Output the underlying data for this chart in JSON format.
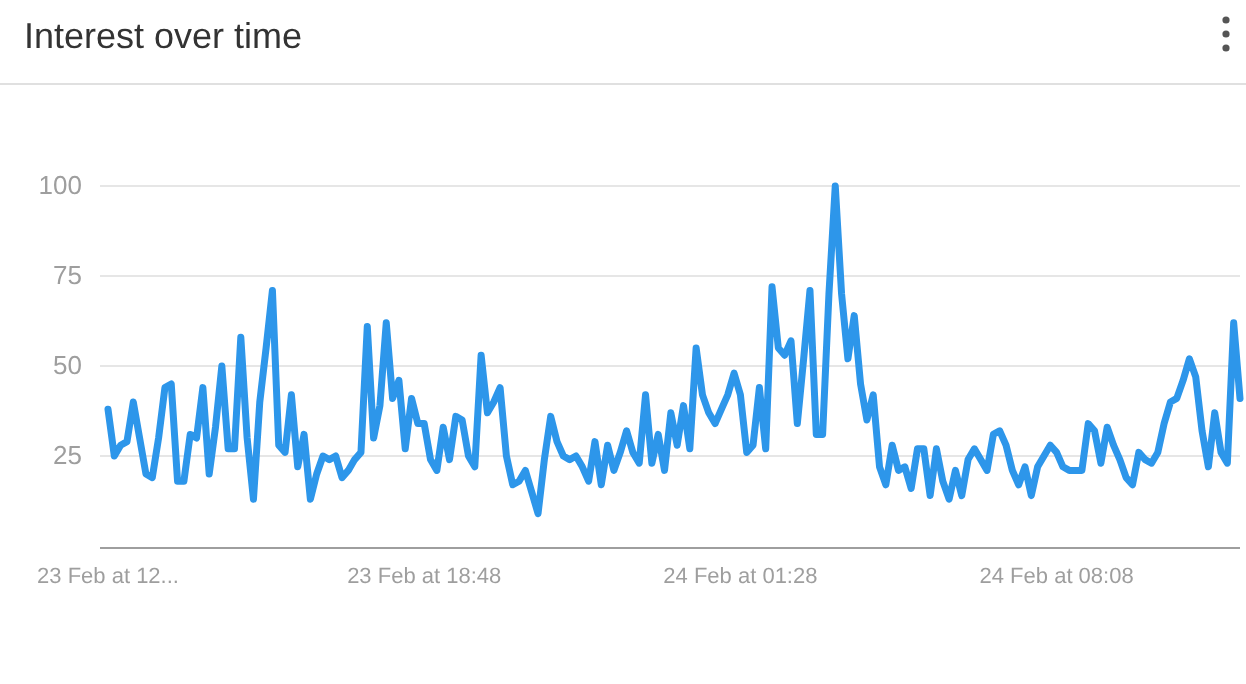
{
  "chart_data": {
    "type": "line",
    "title": "Interest over time",
    "categories": [
      "23 Feb at 12...",
      null,
      null,
      null,
      null,
      null,
      null,
      null,
      null,
      null,
      null,
      null,
      null,
      null,
      null,
      null,
      null,
      null,
      null,
      null,
      null,
      null,
      null,
      null,
      null,
      null,
      null,
      null,
      null,
      null,
      null,
      null,
      null,
      null,
      null,
      null,
      null,
      null,
      null,
      null,
      null,
      null,
      null,
      null,
      null,
      null,
      null,
      null,
      null,
      null,
      "23 Feb at 18:48",
      null,
      null,
      null,
      null,
      null,
      null,
      null,
      null,
      null,
      null,
      null,
      null,
      null,
      null,
      null,
      null,
      null,
      null,
      null,
      null,
      null,
      null,
      null,
      null,
      null,
      null,
      null,
      null,
      null,
      null,
      null,
      null,
      null,
      null,
      null,
      null,
      null,
      null,
      null,
      null,
      null,
      null,
      null,
      null,
      null,
      null,
      null,
      null,
      null,
      "24 Feb at 01:28",
      null,
      null,
      null,
      null,
      null,
      null,
      null,
      null,
      null,
      null,
      null,
      null,
      null,
      null,
      null,
      null,
      null,
      null,
      null,
      null,
      null,
      null,
      null,
      null,
      null,
      null,
      null,
      null,
      null,
      null,
      null,
      null,
      null,
      null,
      null,
      null,
      null,
      null,
      null,
      null,
      null,
      null,
      null,
      null,
      null,
      null,
      null,
      null,
      null,
      "24 Feb at 08:08",
      null,
      null,
      null,
      null,
      null,
      null,
      null,
      null,
      null,
      null,
      null,
      null,
      null,
      null,
      null,
      null,
      null,
      null,
      null,
      null,
      null,
      null,
      null,
      null,
      null,
      null,
      null,
      null,
      null
    ],
    "series": [
      {
        "color": "#2d96ea",
        "values": [
          38,
          25,
          28,
          29,
          40,
          30,
          20,
          19,
          30,
          44,
          45,
          18,
          18,
          31,
          30,
          44,
          20,
          33,
          50,
          27,
          27,
          58,
          30,
          13,
          40,
          55,
          71,
          28,
          26,
          42,
          22,
          31,
          13,
          20,
          25,
          24,
          25,
          19,
          21,
          24,
          26,
          61,
          30,
          39,
          62,
          41,
          46,
          27,
          41,
          34,
          34,
          24,
          21,
          33,
          24,
          36,
          35,
          25,
          22,
          53,
          37,
          40,
          44,
          25,
          17,
          18,
          21,
          15,
          9,
          24,
          36,
          29,
          25,
          24,
          25,
          22,
          18,
          29,
          17,
          28,
          21,
          26,
          32,
          26,
          23,
          42,
          23,
          31,
          21,
          37,
          28,
          39,
          27,
          55,
          42,
          37,
          34,
          38,
          42,
          48,
          42,
          26,
          28,
          44,
          27,
          72,
          55,
          53,
          57,
          34,
          52,
          71,
          31,
          31,
          70,
          100,
          70,
          52,
          64,
          45,
          35,
          42,
          22,
          17,
          28,
          21,
          22,
          16,
          27,
          27,
          14,
          27,
          18,
          13,
          21,
          14,
          24,
          27,
          24,
          21,
          31,
          32,
          28,
          21,
          17,
          22,
          14,
          22,
          25,
          28,
          26,
          22,
          21,
          21,
          21,
          34,
          32,
          23,
          33,
          28,
          24,
          19,
          17,
          26,
          24,
          23,
          26,
          34,
          40,
          41,
          46,
          52,
          47,
          32,
          22,
          37,
          26,
          23,
          62,
          41
        ]
      }
    ],
    "ylim": [
      0,
      100
    ],
    "yticks": [
      25,
      50,
      75,
      100
    ],
    "grid": "y",
    "marker": "none",
    "line_style": "solid"
  }
}
